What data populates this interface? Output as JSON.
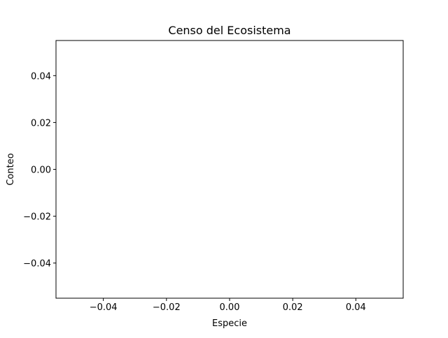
{
  "chart_data": {
    "type": "bar",
    "title": "Censo del Ecosistema",
    "xlabel": "Especie",
    "ylabel": "Conteo",
    "categories": [],
    "values": [],
    "xlim": [
      -0.055,
      0.055
    ],
    "ylim": [
      -0.055,
      0.055
    ],
    "xticks": [
      -0.04,
      -0.02,
      0.0,
      0.02,
      0.04
    ],
    "yticks": [
      -0.04,
      -0.02,
      0.0,
      0.02,
      0.04
    ],
    "xtick_labels": [
      "−0.04",
      "−0.02",
      "0.00",
      "0.02",
      "0.04"
    ],
    "ytick_labels": [
      "−0.04",
      "−0.02",
      "0.00",
      "0.02",
      "0.04"
    ],
    "grid": false,
    "legend": "none"
  }
}
